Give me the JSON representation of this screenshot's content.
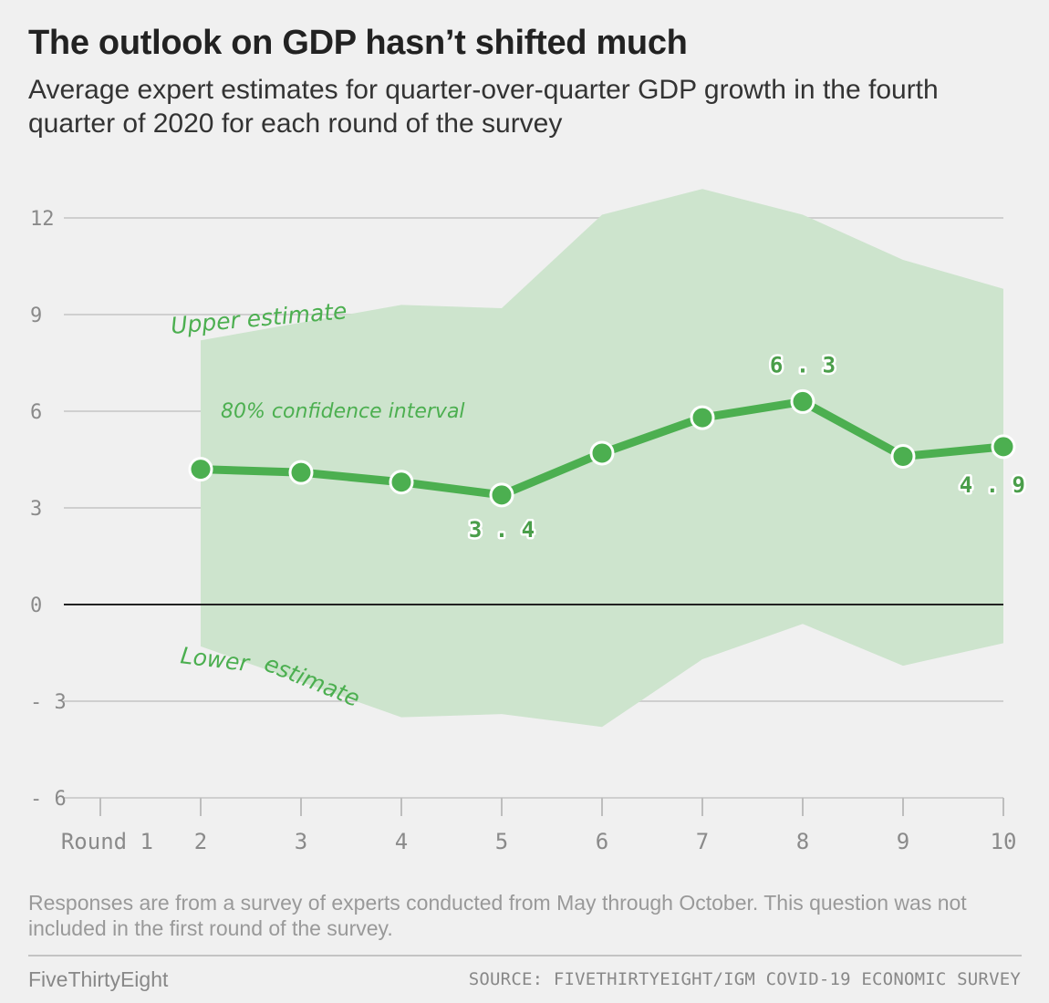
{
  "title": "The outlook on GDP hasn’t shifted much",
  "subtitle": "Average expert estimates for quarter-over-quarter GDP growth in the fourth quarter of 2020 for each round of the survey",
  "note": "Responses are from a survey of experts conducted from May through October. This question was not included in the first round of the survey.",
  "brand": "FiveThirtyEight",
  "source": "SOURCE: FIVETHIRTYEIGHT/IGM COVID-19 ECONOMIC SURVEY",
  "colors": {
    "line": "#4caf50",
    "band": "#cde4cd",
    "grid": "#cfcfcf",
    "zero": "#222222"
  },
  "chart_data": {
    "type": "line",
    "x": [
      2,
      3,
      4,
      5,
      6,
      7,
      8,
      9,
      10
    ],
    "x_ticks": [
      1,
      2,
      3,
      4,
      5,
      6,
      7,
      8,
      9,
      10
    ],
    "x_tick_labels": [
      "Round  1",
      "2",
      "3",
      "4",
      "5",
      "6",
      "7",
      "8",
      "9",
      "10"
    ],
    "xlim": [
      1,
      10
    ],
    "ylim": [
      -6,
      13
    ],
    "y_ticks": [
      12,
      9,
      6,
      3,
      0,
      -3,
      -6
    ],
    "y_tick_labels": [
      "12",
      "9",
      "6",
      "3",
      "0",
      "- 3",
      "- 6"
    ],
    "grid": true,
    "series": [
      {
        "values": [
          4.2,
          4.1,
          3.8,
          3.4,
          4.7,
          5.8,
          6.3,
          4.6,
          4.9
        ]
      }
    ],
    "band": {
      "upper": [
        8.2,
        9.3,
        9.2,
        12.1,
        12.9,
        12.1,
        10.7,
        9.8
      ],
      "upper_x": [
        2,
        4,
        5,
        6,
        7,
        8,
        9,
        10
      ],
      "lower": [
        -1.3,
        -3.5,
        -3.4,
        -3.8,
        -1.7,
        -0.6,
        -1.9,
        -1.2
      ],
      "lower_x": [
        2,
        4,
        5,
        6,
        7,
        8,
        9,
        10
      ]
    },
    "data_labels": [
      {
        "x": 5,
        "text": "3 . 4"
      },
      {
        "x": 8,
        "text": "6 . 3"
      },
      {
        "x": 10,
        "text": "4 . 9"
      }
    ],
    "annotations": {
      "upper": "Upper estimate",
      "interval": "80% confidence interval",
      "lower_1": "Lower",
      "lower_2": "estimate"
    }
  }
}
